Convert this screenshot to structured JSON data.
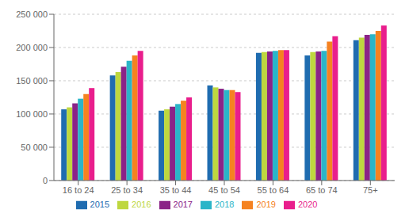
{
  "chart_data": {
    "type": "bar",
    "categories": [
      "16 to 24",
      "25 to 34",
      "35 to 44",
      "45 to 54",
      "55 to 64",
      "65 to 74",
      "75+"
    ],
    "series": [
      {
        "name": "2015",
        "color": "#1f6cb0",
        "values": [
          107000,
          158000,
          105000,
          143000,
          192000,
          188000,
          211000
        ]
      },
      {
        "name": "2016",
        "color": "#bed73f",
        "values": [
          110000,
          163000,
          107000,
          140000,
          193000,
          193000,
          215000
        ]
      },
      {
        "name": "2017",
        "color": "#8b2387",
        "values": [
          116000,
          171000,
          111000,
          138000,
          194000,
          194000,
          219000
        ]
      },
      {
        "name": "2018",
        "color": "#2ab5c8",
        "values": [
          123000,
          180000,
          115000,
          136000,
          195000,
          195000,
          220000
        ]
      },
      {
        "name": "2019",
        "color": "#f58220",
        "values": [
          130000,
          188000,
          120000,
          136000,
          196000,
          209000,
          225000
        ]
      },
      {
        "name": "2020",
        "color": "#e91e8c",
        "values": [
          139000,
          195000,
          125000,
          133000,
          196000,
          217000,
          233000
        ]
      }
    ],
    "ylim": [
      0,
      250000
    ],
    "yticks": [
      0,
      {
        "value": 50000,
        "label": "50 000"
      },
      {
        "value": 100000,
        "label": "100 000"
      },
      {
        "value": 150000,
        "label": "150 000"
      },
      {
        "value": 200000,
        "label": "200 000"
      },
      {
        "value": 250000,
        "label": "250 000"
      }
    ],
    "grid": true,
    "legend": "bottom"
  }
}
